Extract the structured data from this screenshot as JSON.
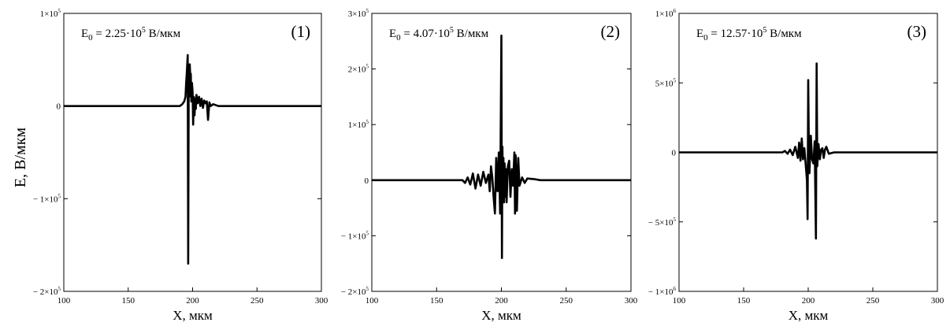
{
  "y_axis_label": "E, В/мкм",
  "chart_data": [
    {
      "type": "line",
      "panel_label": "(1)",
      "annotation": {
        "base": "E",
        "sub": "0",
        "text": " = 2.25·10",
        "sup": "5",
        "unit": " В/мкм"
      },
      "xlabel": "X, мкм",
      "xlim": [
        100,
        300
      ],
      "ylim": [
        -200000,
        100000
      ],
      "x_ticks": [
        100,
        150,
        200,
        250,
        300
      ],
      "y_ticks": [
        {
          "value": 100000,
          "mant": "1×10",
          "exp": "5"
        },
        {
          "value": 0,
          "mant": "0",
          "exp": ""
        },
        {
          "value": -100000,
          "mant": "− 1×10",
          "exp": "5"
        },
        {
          "value": -200000,
          "mant": "− 2×10",
          "exp": "5"
        }
      ],
      "series": [
        {
          "x": [
            100,
            190,
            192,
            193.5,
            194.5,
            195,
            195.5,
            196.2,
            196.6,
            197,
            197.4,
            197.8,
            198.2,
            198.6,
            199,
            199.5,
            200,
            200.4,
            201,
            201.5,
            202,
            202.5,
            203,
            204,
            205,
            206,
            207,
            208,
            209,
            210,
            211,
            212,
            213,
            214,
            216,
            220,
            300
          ],
          "y": [
            0,
            0,
            2000,
            5000,
            10000,
            25000,
            35000,
            55000,
            -170000,
            40000,
            10000,
            45000,
            30000,
            35000,
            5000,
            25000,
            15000,
            -20000,
            10000,
            -10000,
            8000,
            -3000,
            12000,
            3000,
            10000,
            0,
            8000,
            -2000,
            6000,
            3000,
            5000,
            -15000,
            4000,
            0,
            2000,
            0,
            0
          ]
        }
      ]
    },
    {
      "type": "line",
      "panel_label": "(2)",
      "annotation": {
        "base": "E",
        "sub": "0",
        "text": " = 4.07·10",
        "sup": "5",
        "unit": " В/мкм"
      },
      "xlabel": "X, мкм",
      "xlim": [
        100,
        300
      ],
      "ylim": [
        -200000,
        300000
      ],
      "x_ticks": [
        100,
        150,
        200,
        250,
        300
      ],
      "y_ticks": [
        {
          "value": 300000,
          "mant": "3×10",
          "exp": "5"
        },
        {
          "value": 200000,
          "mant": "2×10",
          "exp": "5"
        },
        {
          "value": 100000,
          "mant": "1×10",
          "exp": "5"
        },
        {
          "value": 0,
          "mant": "0",
          "exp": ""
        },
        {
          "value": -100000,
          "mant": "− 1×10",
          "exp": "5"
        },
        {
          "value": -200000,
          "mant": "− 2×10",
          "exp": "5"
        }
      ],
      "series": [
        {
          "x": [
            100,
            170,
            172,
            174,
            176,
            178,
            180,
            182,
            184,
            186,
            188,
            190,
            191,
            192,
            193,
            194,
            195,
            196,
            197,
            198,
            199,
            200,
            200.4,
            200.8,
            201.2,
            201.6,
            202,
            202.5,
            203,
            203.5,
            204,
            205,
            206,
            207,
            208,
            209,
            210,
            210.5,
            211,
            211.5,
            212,
            213,
            214,
            216,
            218,
            220,
            225,
            230,
            300
          ],
          "y": [
            0,
            0,
            -5000,
            5000,
            -8000,
            12000,
            -15000,
            10000,
            -10000,
            15000,
            -5000,
            10000,
            -20000,
            25000,
            5000,
            -30000,
            -60000,
            40000,
            -20000,
            50000,
            -60000,
            260000,
            -140000,
            60000,
            -20000,
            40000,
            -40000,
            30000,
            -30000,
            20000,
            -40000,
            25000,
            35000,
            -30000,
            20000,
            -10000,
            50000,
            -60000,
            45000,
            10000,
            -55000,
            40000,
            -10000,
            5000,
            -5000,
            3000,
            2000,
            0,
            0
          ]
        }
      ]
    },
    {
      "type": "line",
      "panel_label": "(3)",
      "annotation": {
        "base": "E",
        "sub": "0",
        "text": " = 12.57·10",
        "sup": "5",
        "unit": " В/мкм"
      },
      "xlabel": "X, мкм",
      "xlim": [
        100,
        300
      ],
      "ylim": [
        -1000000,
        1000000
      ],
      "x_ticks": [
        100,
        150,
        200,
        250,
        300
      ],
      "y_ticks": [
        {
          "value": 1000000,
          "mant": "1×10",
          "exp": "6"
        },
        {
          "value": 500000,
          "mant": "5×10",
          "exp": "5"
        },
        {
          "value": 0,
          "mant": "0",
          "exp": ""
        },
        {
          "value": -500000,
          "mant": "− 5×10",
          "exp": "5"
        },
        {
          "value": -1000000,
          "mant": "− 1×10",
          "exp": "6"
        }
      ],
      "series": [
        {
          "x": [
            100,
            180,
            182,
            184,
            186,
            188,
            190,
            192,
            193,
            194,
            195,
            196,
            197,
            198,
            199,
            199.5,
            200,
            200.5,
            201,
            202,
            203,
            204,
            205,
            206,
            206.5,
            207,
            208,
            209,
            210,
            211,
            212,
            213,
            214,
            216,
            220,
            300
          ],
          "y": [
            0,
            0,
            10000,
            -10000,
            20000,
            -20000,
            40000,
            -40000,
            70000,
            -60000,
            100000,
            -50000,
            30000,
            -80000,
            -200000,
            -480000,
            520000,
            50000,
            -150000,
            120000,
            -50000,
            -80000,
            80000,
            -620000,
            640000,
            -100000,
            60000,
            -50000,
            20000,
            30000,
            -40000,
            20000,
            40000,
            -10000,
            0,
            0
          ]
        }
      ]
    }
  ]
}
